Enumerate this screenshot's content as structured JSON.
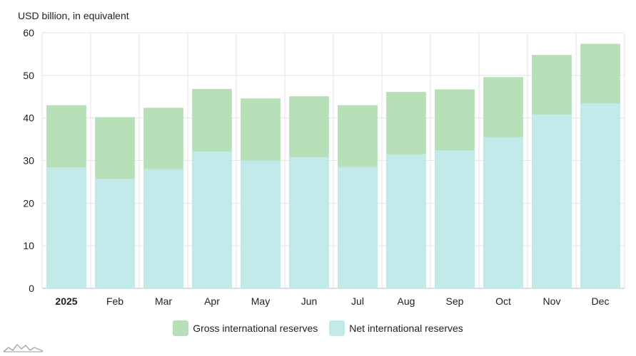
{
  "chart_data": {
    "type": "bar",
    "stacked": false,
    "overlapping": true,
    "unit_label": "USD billion, in equivalent",
    "categories": [
      "2025",
      "Feb",
      "Mar",
      "Apr",
      "May",
      "Jun",
      "Jul",
      "Aug",
      "Sep",
      "Oct",
      "Nov",
      "Dec"
    ],
    "bold_categories": [
      "2025"
    ],
    "series": [
      {
        "name": "Gross international reserves",
        "color": "#b7e0b8",
        "values": [
          43.0,
          40.2,
          42.4,
          46.8,
          44.6,
          45.1,
          43.0,
          46.1,
          46.7,
          49.6,
          54.8,
          57.4
        ]
      },
      {
        "name": "Net international reserves",
        "color": "#c3eaea",
        "values": [
          28.4,
          25.7,
          28.0,
          32.1,
          30.0,
          30.8,
          28.5,
          31.5,
          32.4,
          35.5,
          40.8,
          43.4
        ]
      }
    ],
    "ylim": [
      0,
      60
    ],
    "yticks": [
      0,
      10,
      20,
      30,
      40,
      50,
      60
    ],
    "grid": true,
    "legend_position": "bottom"
  }
}
